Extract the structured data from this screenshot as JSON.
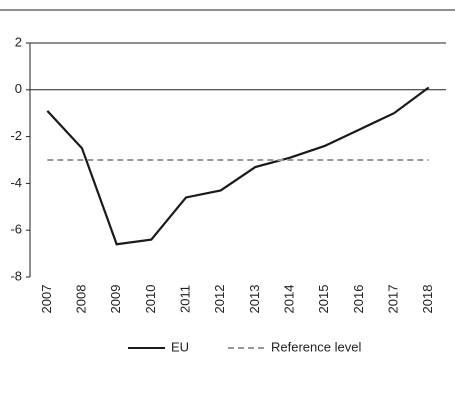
{
  "chart_data": {
    "type": "line",
    "categories": [
      "2007",
      "2008",
      "2009",
      "2010",
      "2011",
      "2012",
      "2013",
      "2014",
      "2015",
      "2016",
      "2017",
      "2018"
    ],
    "series": [
      {
        "name": "EU",
        "color": "#1a1a1a",
        "dash": false,
        "values": [
          -0.9,
          -2.5,
          -6.6,
          -6.4,
          -4.6,
          -4.3,
          -3.3,
          -2.9,
          -2.4,
          -1.7,
          -1.0,
          0.1
        ]
      },
      {
        "name": "Reference level",
        "color": "#999999",
        "dash": true,
        "values": [
          -3,
          -3,
          -3,
          -3,
          -3,
          -3,
          -3,
          -3,
          -3,
          -3,
          -3,
          -3
        ]
      }
    ],
    "ylim": [
      -8,
      2
    ],
    "yticks": [
      2,
      0,
      -2,
      -4,
      -6,
      -8
    ],
    "grid": false
  }
}
